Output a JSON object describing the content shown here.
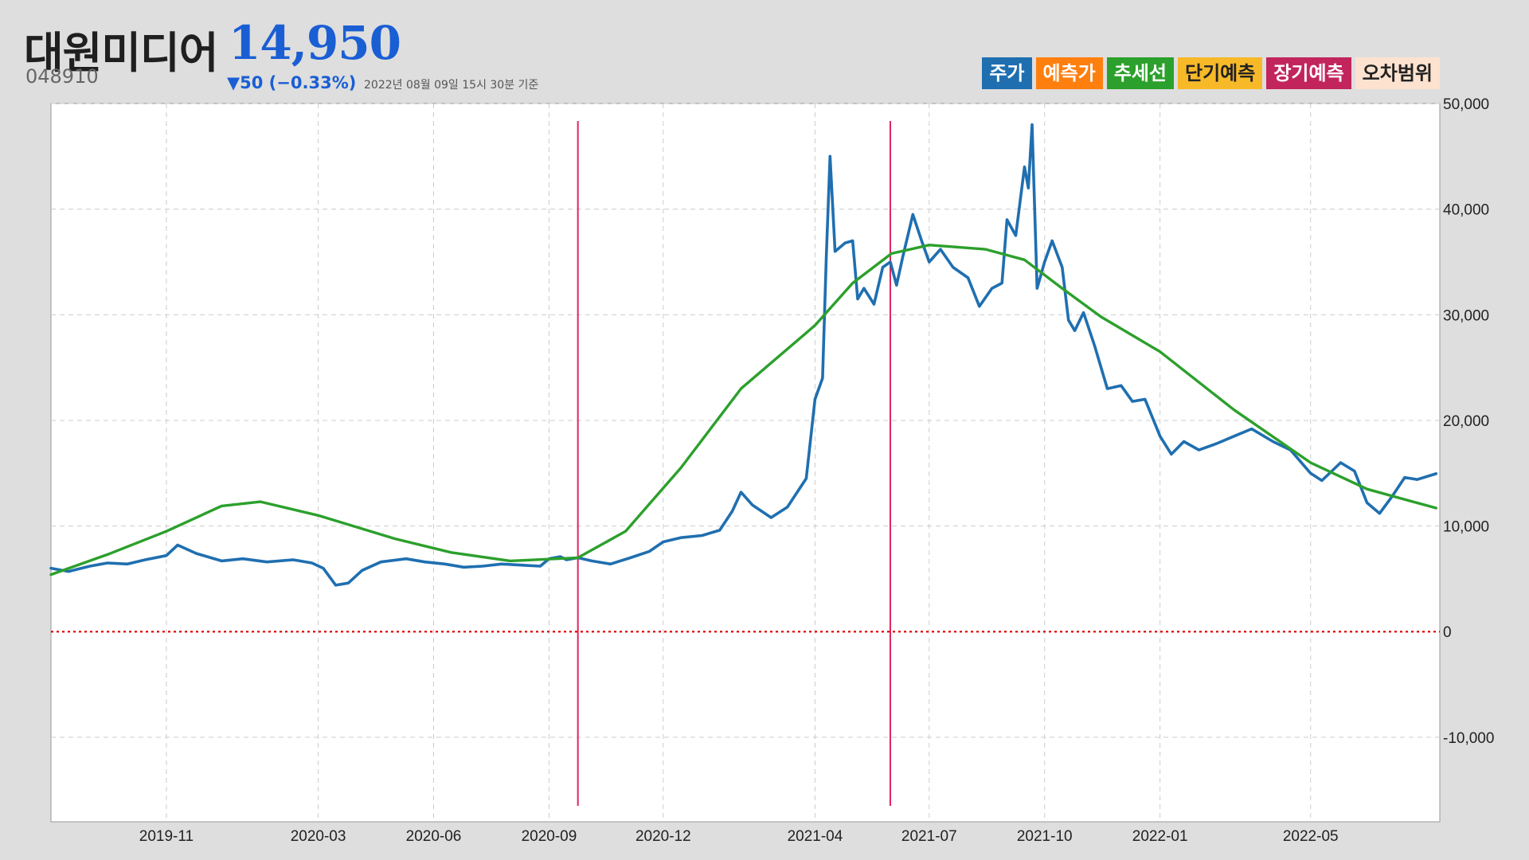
{
  "header": {
    "name": "대원미디어",
    "price": "14,950",
    "code": "048910",
    "change": "▼50 (−0.33%)",
    "as_of": "2022년 08월 09일 15시 30분 기준"
  },
  "legend": [
    {
      "label": "주가",
      "color": "#1f6fb0",
      "text": "#ffffff"
    },
    {
      "label": "예측가",
      "color": "#ff7f0e",
      "text": "#ffffff"
    },
    {
      "label": "추세선",
      "color": "#2ca02c",
      "text": "#ffffff"
    },
    {
      "label": "단기예측",
      "color": "#f7b928",
      "text": "#222222"
    },
    {
      "label": "장기예측",
      "color": "#c2255c",
      "text": "#ffffff"
    },
    {
      "label": "오차범위",
      "color": "#fde2d0",
      "text": "#222222"
    }
  ],
  "chart_data": {
    "type": "line",
    "x_ticks": [
      "2019-11",
      "2020-03",
      "2020-06",
      "2020-09",
      "2020-12",
      "2021-04",
      "2021-07",
      "2021-10",
      "2022-01",
      "2022-05"
    ],
    "y_ticks": [
      "50,000",
      "40,000",
      "30,000",
      "20,000",
      "10,000",
      "0",
      "-10,000"
    ],
    "ylim": [
      -18000,
      50000
    ],
    "grid": true,
    "reference_line": {
      "y": 0,
      "color": "#e00000",
      "style": "dotted"
    },
    "vertical_markers": [
      "2020-09-24",
      "2021-05-31"
    ],
    "series": [
      {
        "name": "주가",
        "color": "#1f6fb0",
        "points": [
          [
            "2019-08-01",
            6000
          ],
          [
            "2019-08-15",
            5700
          ],
          [
            "2019-09-01",
            6200
          ],
          [
            "2019-09-15",
            6500
          ],
          [
            "2019-10-01",
            6400
          ],
          [
            "2019-10-15",
            6800
          ],
          [
            "2019-11-01",
            7200
          ],
          [
            "2019-11-10",
            8200
          ],
          [
            "2019-11-25",
            7400
          ],
          [
            "2019-12-15",
            6700
          ],
          [
            "2020-01-01",
            6900
          ],
          [
            "2020-01-20",
            6600
          ],
          [
            "2020-02-10",
            6800
          ],
          [
            "2020-02-25",
            6500
          ],
          [
            "2020-03-05",
            6000
          ],
          [
            "2020-03-15",
            4400
          ],
          [
            "2020-03-25",
            4600
          ],
          [
            "2020-04-05",
            5800
          ],
          [
            "2020-04-20",
            6600
          ],
          [
            "2020-05-10",
            6900
          ],
          [
            "2020-05-25",
            6600
          ],
          [
            "2020-06-10",
            6400
          ],
          [
            "2020-06-25",
            6100
          ],
          [
            "2020-07-10",
            6200
          ],
          [
            "2020-07-25",
            6400
          ],
          [
            "2020-08-10",
            6300
          ],
          [
            "2020-08-25",
            6200
          ],
          [
            "2020-09-01",
            6900
          ],
          [
            "2020-09-10",
            7100
          ],
          [
            "2020-09-15",
            6800
          ],
          [
            "2020-09-24",
            7000
          ],
          [
            "2020-10-05",
            6700
          ],
          [
            "2020-10-20",
            6400
          ],
          [
            "2020-11-05",
            7000
          ],
          [
            "2020-11-20",
            7600
          ],
          [
            "2020-12-01",
            8500
          ],
          [
            "2020-12-15",
            8900
          ],
          [
            "2021-01-01",
            9100
          ],
          [
            "2021-01-15",
            9600
          ],
          [
            "2021-01-25",
            11400
          ],
          [
            "2021-02-01",
            13200
          ],
          [
            "2021-02-10",
            12000
          ],
          [
            "2021-02-25",
            10800
          ],
          [
            "2021-03-10",
            11800
          ],
          [
            "2021-03-25",
            14500
          ],
          [
            "2021-04-01",
            22000
          ],
          [
            "2021-04-07",
            24000
          ],
          [
            "2021-04-10",
            35500
          ],
          [
            "2021-04-13",
            45000
          ],
          [
            "2021-04-17",
            36000
          ],
          [
            "2021-04-25",
            36800
          ],
          [
            "2021-05-01",
            37000
          ],
          [
            "2021-05-05",
            31500
          ],
          [
            "2021-05-10",
            32500
          ],
          [
            "2021-05-18",
            31000
          ],
          [
            "2021-05-25",
            34500
          ],
          [
            "2021-05-31",
            35000
          ],
          [
            "2021-06-05",
            32800
          ],
          [
            "2021-06-10",
            35500
          ],
          [
            "2021-06-18",
            39500
          ],
          [
            "2021-06-25",
            37000
          ],
          [
            "2021-07-01",
            35000
          ],
          [
            "2021-07-10",
            36200
          ],
          [
            "2021-07-20",
            34500
          ],
          [
            "2021-08-01",
            33500
          ],
          [
            "2021-08-10",
            30800
          ],
          [
            "2021-08-20",
            32500
          ],
          [
            "2021-08-28",
            33000
          ],
          [
            "2021-09-01",
            39000
          ],
          [
            "2021-09-08",
            37500
          ],
          [
            "2021-09-15",
            44000
          ],
          [
            "2021-09-18",
            42000
          ],
          [
            "2021-09-21",
            48000
          ],
          [
            "2021-09-25",
            32500
          ],
          [
            "2021-10-01",
            35000
          ],
          [
            "2021-10-07",
            37000
          ],
          [
            "2021-10-15",
            34500
          ],
          [
            "2021-10-20",
            29500
          ],
          [
            "2021-10-25",
            28500
          ],
          [
            "2021-11-01",
            30200
          ],
          [
            "2021-11-10",
            27000
          ],
          [
            "2021-11-20",
            23000
          ],
          [
            "2021-12-01",
            23300
          ],
          [
            "2021-12-10",
            21800
          ],
          [
            "2021-12-20",
            22000
          ],
          [
            "2022-01-01",
            18500
          ],
          [
            "2022-01-10",
            16800
          ],
          [
            "2022-01-20",
            18000
          ],
          [
            "2022-02-01",
            17200
          ],
          [
            "2022-02-15",
            17800
          ],
          [
            "2022-03-01",
            18500
          ],
          [
            "2022-03-15",
            19200
          ],
          [
            "2022-04-01",
            18000
          ],
          [
            "2022-04-15",
            17200
          ],
          [
            "2022-05-01",
            15000
          ],
          [
            "2022-05-10",
            14300
          ],
          [
            "2022-05-25",
            16000
          ],
          [
            "2022-06-05",
            15200
          ],
          [
            "2022-06-15",
            12200
          ],
          [
            "2022-06-25",
            11200
          ],
          [
            "2022-07-05",
            12800
          ],
          [
            "2022-07-15",
            14600
          ],
          [
            "2022-07-25",
            14400
          ],
          [
            "2022-08-09",
            14950
          ]
        ]
      },
      {
        "name": "추세선",
        "color": "#2ca02c",
        "points": [
          [
            "2019-08-01",
            5400
          ],
          [
            "2019-09-15",
            7300
          ],
          [
            "2019-11-01",
            9500
          ],
          [
            "2019-12-15",
            11900
          ],
          [
            "2020-01-15",
            12300
          ],
          [
            "2020-03-01",
            11000
          ],
          [
            "2020-05-01",
            8800
          ],
          [
            "2020-06-15",
            7500
          ],
          [
            "2020-08-01",
            6700
          ],
          [
            "2020-09-24",
            7000
          ],
          [
            "2020-11-01",
            9500
          ],
          [
            "2020-12-15",
            15500
          ],
          [
            "2021-02-01",
            23000
          ],
          [
            "2021-04-01",
            29000
          ],
          [
            "2021-05-01",
            33000
          ],
          [
            "2021-06-01",
            35800
          ],
          [
            "2021-07-01",
            36600
          ],
          [
            "2021-08-15",
            36200
          ],
          [
            "2021-09-15",
            35200
          ],
          [
            "2021-10-15",
            32500
          ],
          [
            "2021-11-15",
            29800
          ],
          [
            "2022-01-01",
            26500
          ],
          [
            "2022-03-01",
            21000
          ],
          [
            "2022-05-01",
            16000
          ],
          [
            "2022-06-15",
            13500
          ],
          [
            "2022-08-09",
            11700
          ]
        ]
      }
    ]
  }
}
